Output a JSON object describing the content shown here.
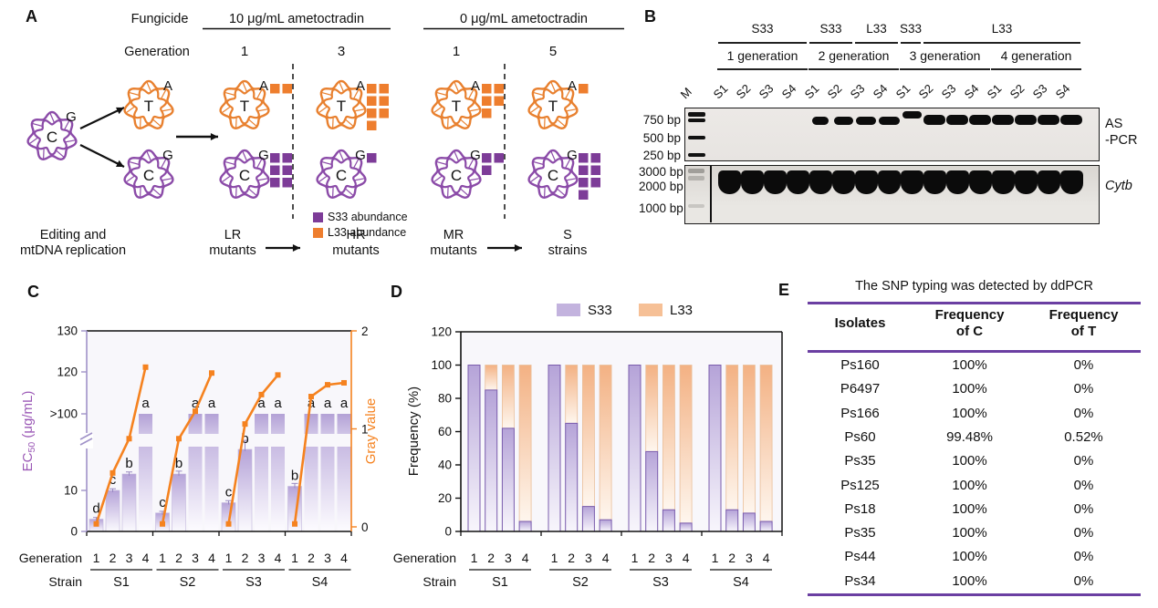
{
  "colors": {
    "orange": "#E8802F",
    "purple": "#8B4BA8",
    "square_purple": "#7D3C98",
    "square_orange": "#EE7E2E",
    "line_orange": "#F5821F",
    "bar_purple": "#B5A3D8",
    "bar_orange": "#F4B485",
    "axis_purple": "#A092C8",
    "ec50_label_purple": "#9B59B6",
    "table_rule": "#6B3FA2",
    "legend_purple": "#C3B3DE",
    "legend_orange": "#F6C096"
  },
  "panelA": {
    "label": "A",
    "fungicide_label": "Fungicide",
    "generation_label": "Generation",
    "conditions": [
      {
        "text": "10 μg/mL ametoctradin",
        "generations": [
          "1",
          "3"
        ]
      },
      {
        "text": "0 μg/mL ametoctradin",
        "generations": [
          "1",
          "5"
        ]
      }
    ],
    "source_circle": {
      "letter": "C",
      "sup": "G",
      "color": "purple"
    },
    "daughter_top": {
      "letter": "T",
      "sup": "A",
      "color": "orange"
    },
    "daughter_bottom": {
      "letter": "C",
      "sup": "G",
      "color": "purple"
    },
    "columns": [
      {
        "generation": "1",
        "l33_squares": 2,
        "s33_squares": 6
      },
      {
        "generation": "3",
        "l33_squares": 7,
        "s33_squares": 1
      },
      {
        "generation": "1",
        "l33_squares": 5,
        "s33_squares": 3
      },
      {
        "generation": "5",
        "l33_squares": 1,
        "s33_squares": 7
      }
    ],
    "legend": [
      {
        "label": "S33 abundance",
        "swatch": "purple"
      },
      {
        "label": "L33 abundance",
        "swatch": "orange"
      }
    ],
    "bottom_labels": [
      {
        "line1": "Editing and",
        "line2": "mtDNA replication"
      },
      {
        "line1": "LR",
        "line2": "mutants"
      },
      {
        "line1": "HR",
        "line2": "mutants"
      },
      {
        "line1": "MR",
        "line2": "mutants"
      },
      {
        "line1": "S",
        "line2": "strains"
      }
    ]
  },
  "panelB": {
    "label": "B",
    "allele_row": [
      {
        "label": "S33",
        "from": 0,
        "to": 3
      },
      {
        "label": "S33",
        "from": 4,
        "to": 5
      },
      {
        "label": "L33",
        "from": 6,
        "to": 7
      },
      {
        "label": "S33",
        "from": 8,
        "to": 8
      },
      {
        "label": "L33",
        "from": 9,
        "to": 15
      }
    ],
    "generation_row": [
      {
        "label": "1 generation",
        "from": 0,
        "to": 3
      },
      {
        "label": "2 generation",
        "from": 4,
        "to": 7
      },
      {
        "label": "3 generation",
        "from": 8,
        "to": 11
      },
      {
        "label": "4 generation",
        "from": 12,
        "to": 15
      }
    ],
    "marker_lane": "M",
    "lanes": [
      "S1",
      "S2",
      "S3",
      "S4",
      "S1",
      "S2",
      "S3",
      "S4",
      "S1",
      "S2",
      "S3",
      "S4",
      "S1",
      "S2",
      "S3",
      "S4"
    ],
    "top_gel": {
      "markers": [
        "750 bp",
        "500 bp",
        "250 bp"
      ],
      "band_lanes": [
        4,
        5,
        6,
        7,
        8,
        9,
        10,
        11,
        12,
        13,
        14,
        15
      ],
      "high_band_lane": 8,
      "label_line1": "AS",
      "label_line2": "-PCR"
    },
    "bottom_gel": {
      "markers": [
        "3000 bp",
        "2000 bp",
        "1000 bp"
      ],
      "label": "Cytb"
    }
  },
  "chart_data": [
    {
      "type": "bar+line",
      "panel": "C",
      "groups": [
        "S1",
        "S2",
        "S3",
        "S4"
      ],
      "generations": [
        "1",
        "2",
        "3",
        "4"
      ],
      "bar_series": {
        "name": "EC50 (μg/mL)",
        "values": [
          [
            3,
            10,
            14,
            ">100"
          ],
          [
            4.5,
            14,
            ">100",
            ">100"
          ],
          [
            7,
            20,
            ">100",
            ">100"
          ],
          [
            11,
            ">100",
            ">100",
            ">100"
          ]
        ],
        "errors": [
          [
            0.4,
            0.4,
            0.5,
            0
          ],
          [
            0.4,
            0.7,
            0,
            0
          ],
          [
            0.5,
            2.2,
            0,
            0
          ],
          [
            0.7,
            0,
            0,
            0
          ]
        ]
      },
      "sig_letters": [
        [
          "d",
          "c",
          "b",
          "a"
        ],
        [
          "c",
          "b",
          "a",
          "a"
        ],
        [
          "c",
          "b",
          "a",
          "a"
        ],
        [
          "b",
          "a",
          "a",
          "a"
        ]
      ],
      "line_series": {
        "name": "Gray value",
        "values": [
          [
            0.03,
            0.55,
            0.9,
            1.63
          ],
          [
            0.03,
            0.9,
            1.18,
            1.57
          ],
          [
            0.03,
            1.05,
            1.35,
            1.55
          ],
          [
            0.03,
            1.33,
            1.45,
            1.47
          ]
        ]
      },
      "left_axis": {
        "label_prefix": "EC",
        "label_sub": "50",
        "label_suffix": " (μg/mL)",
        "ticks": [
          "130",
          "120",
          ">100",
          "10",
          "0"
        ],
        "broken": true,
        "break_between": [
          "10",
          "100"
        ]
      },
      "right_axis": {
        "label": "Gray value",
        "ticks": [
          "2",
          "1",
          "0"
        ],
        "range": [
          0,
          2
        ]
      },
      "x_axis": {
        "row1_label": "Generation",
        "row2_label": "Strain"
      }
    },
    {
      "type": "stacked-bar",
      "panel": "D",
      "groups": [
        "S1",
        "S2",
        "S3",
        "S4"
      ],
      "generations": [
        "1",
        "2",
        "3",
        "4"
      ],
      "series": [
        {
          "name": "S33",
          "values": [
            [
              100,
              85,
              62,
              6
            ],
            [
              100,
              65,
              15,
              7
            ],
            [
              100,
              48,
              13,
              5
            ],
            [
              100,
              13,
              11,
              6
            ]
          ]
        },
        {
          "name": "L33",
          "values": [
            [
              0,
              15,
              38,
              94
            ],
            [
              0,
              35,
              85,
              93
            ],
            [
              0,
              52,
              87,
              95
            ],
            [
              0,
              87,
              89,
              94
            ]
          ]
        }
      ],
      "ylabel": "Frequency (%)",
      "yticks": [
        "0",
        "20",
        "40",
        "60",
        "80",
        "100",
        "120"
      ],
      "ylim": [
        0,
        120
      ],
      "legend": [
        "S33",
        "L33"
      ],
      "x_axis": {
        "row1_label": "Generation",
        "row2_label": "Strain"
      }
    }
  ],
  "panelE": {
    "label": "E",
    "title": "The SNP typing was detected by ddPCR",
    "columns": [
      {
        "line1": "Isolates",
        "line2": ""
      },
      {
        "line1": "Frequency",
        "line2": "of C"
      },
      {
        "line1": "Frequency",
        "line2": "of T"
      }
    ],
    "rows": [
      [
        "Ps160",
        "100%",
        "0%"
      ],
      [
        "P6497",
        "100%",
        "0%"
      ],
      [
        "Ps166",
        "100%",
        "0%"
      ],
      [
        "Ps60",
        "99.48%",
        "0.52%"
      ],
      [
        "Ps35",
        "100%",
        "0%"
      ],
      [
        "Ps125",
        "100%",
        "0%"
      ],
      [
        "Ps18",
        "100%",
        "0%"
      ],
      [
        "Ps35",
        "100%",
        "0%"
      ],
      [
        "Ps44",
        "100%",
        "0%"
      ],
      [
        "Ps34",
        "100%",
        "0%"
      ]
    ]
  }
}
